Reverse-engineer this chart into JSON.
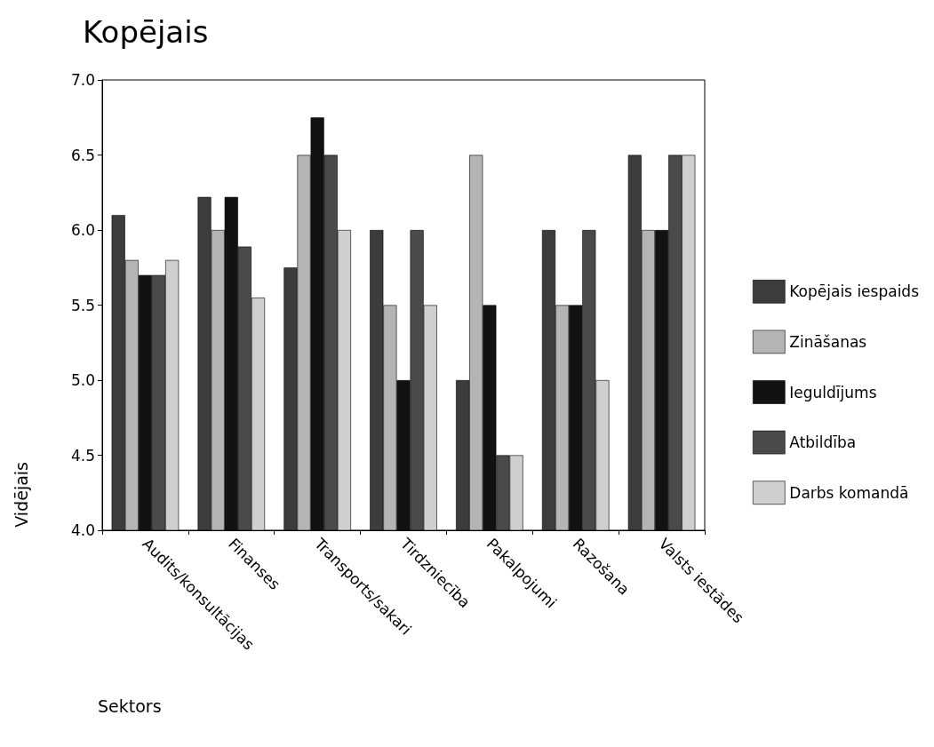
{
  "chart_data": {
    "type": "bar",
    "title": "Kopējais",
    "xlabel": "Sektors",
    "ylabel": "Vidējais",
    "categories": [
      "Audits/konsultācijas",
      "Finanses",
      "Transports/sakari",
      "Tirdzniecība",
      "Pakalpojumi",
      "Razošana",
      "Valsts iestādes"
    ],
    "series": [
      {
        "name": "Kopējais iespaids",
        "color": "#3c3c3c",
        "values": [
          6.1,
          6.22,
          5.75,
          6.0,
          5.0,
          6.0,
          6.5
        ]
      },
      {
        "name": "Zināšanas",
        "color": "#b4b4b4",
        "values": [
          5.8,
          6.0,
          6.5,
          5.5,
          6.5,
          5.5,
          6.0
        ]
      },
      {
        "name": "Ieguldījums",
        "color": "#121212",
        "values": [
          5.7,
          6.22,
          6.75,
          5.0,
          5.5,
          5.5,
          6.0
        ]
      },
      {
        "name": "Atbildība",
        "color": "#4a4a4a",
        "values": [
          5.7,
          5.89,
          6.5,
          6.0,
          4.5,
          6.0,
          6.5
        ]
      },
      {
        "name": "Darbs komandā",
        "color": "#cfcfcf",
        "values": [
          5.8,
          5.55,
          6.0,
          5.5,
          4.5,
          5.0,
          6.5
        ]
      }
    ],
    "ylim": [
      4,
      7
    ],
    "yticks": [
      {
        "value": 4,
        "label": "4.0"
      },
      {
        "value": 4.5,
        "label": "4.5"
      },
      {
        "value": 5,
        "label": "5.0"
      },
      {
        "value": 5.5,
        "label": "5.5"
      },
      {
        "value": 6,
        "label": "6.0"
      },
      {
        "value": 6.5,
        "label": "6.5"
      },
      {
        "value": 7,
        "label": "7.0"
      }
    ],
    "grid": false,
    "legend": "right"
  }
}
